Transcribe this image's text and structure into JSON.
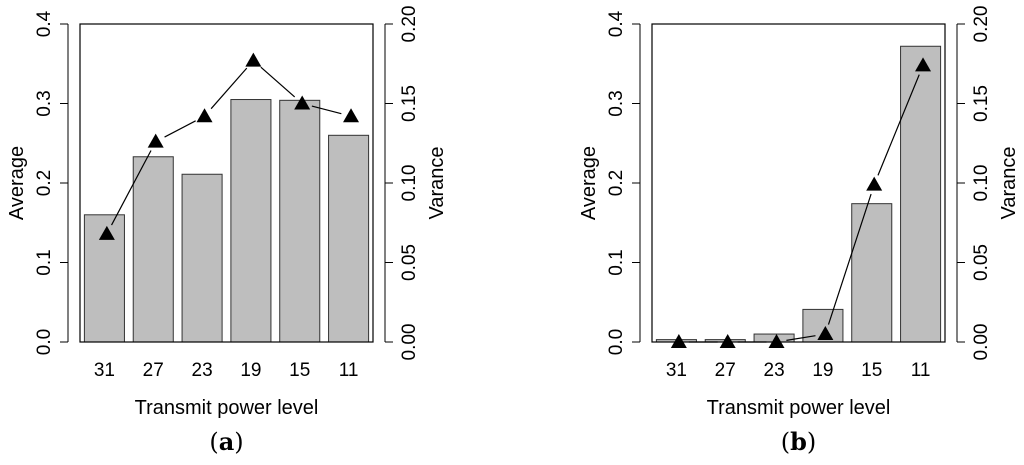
{
  "chart_data": [
    {
      "type": "bar",
      "panel_label": "a",
      "categories": [
        "31",
        "27",
        "23",
        "19",
        "15",
        "11"
      ],
      "series": [
        {
          "values": [
            0.16,
            0.233,
            0.211,
            0.305,
            0.304,
            0.26
          ],
          "axis": "left",
          "mark": "bar",
          "color": "#bebebe"
        },
        {
          "values": [
            0.068,
            0.126,
            0.142,
            0.177,
            0.15,
            0.142
          ],
          "axis": "right",
          "mark": "line-triangle",
          "color": "#000000"
        }
      ],
      "xlabel": "Transmit power level",
      "ylabel": "Average",
      "y2label": "Varance",
      "ylim": [
        0,
        0.4
      ],
      "yticks": [
        "0.0",
        "0.1",
        "0.2",
        "0.3",
        "0.4"
      ],
      "y2lim": [
        0,
        0.2
      ],
      "y2ticks": [
        "0.00",
        "0.05",
        "0.10",
        "0.15",
        "0.20"
      ],
      "grid": false
    },
    {
      "type": "bar",
      "panel_label": "b",
      "categories": [
        "31",
        "27",
        "23",
        "19",
        "15",
        "11"
      ],
      "series": [
        {
          "values": [
            0.003,
            0.003,
            0.01,
            0.041,
            0.174,
            0.372
          ],
          "axis": "left",
          "mark": "bar",
          "color": "#bebebe"
        },
        {
          "values": [
            0.0,
            0.0,
            0.0,
            0.005,
            0.099,
            0.174
          ],
          "axis": "right",
          "mark": "line-triangle",
          "color": "#000000"
        }
      ],
      "xlabel": "Transmit power level",
      "ylabel": "Average",
      "y2label": "Varance",
      "ylim": [
        0,
        0.4
      ],
      "yticks": [
        "0.0",
        "0.1",
        "0.2",
        "0.3",
        "0.4"
      ],
      "y2lim": [
        0,
        0.2
      ],
      "y2ticks": [
        "0.00",
        "0.05",
        "0.10",
        "0.15",
        "0.20"
      ],
      "grid": false
    }
  ]
}
